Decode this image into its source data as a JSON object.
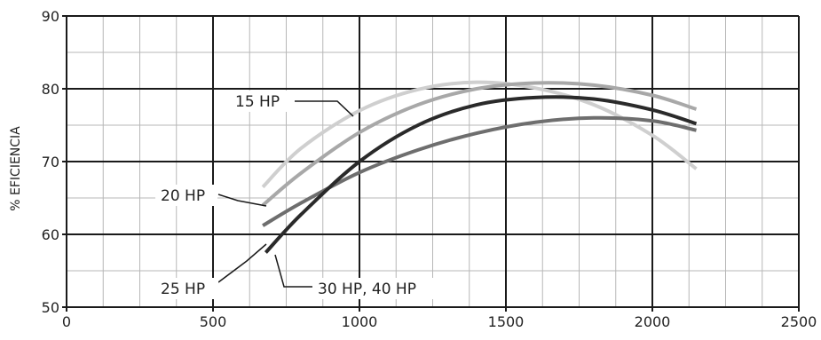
{
  "chart_data": {
    "type": "line",
    "title": "",
    "xlabel": "",
    "ylabel": "% EFICIENCIA",
    "xlim": [
      0,
      2500
    ],
    "ylim": [
      50,
      90
    ],
    "x_ticks": [
      0,
      500,
      1000,
      1500,
      2000,
      2500
    ],
    "y_ticks": [
      50,
      60,
      70,
      80,
      90
    ],
    "x_tick_labels": [
      "0",
      "500",
      "1000",
      "1500",
      "2000",
      "2500"
    ],
    "y_tick_labels": [
      "50",
      "60",
      "70",
      "80",
      "90"
    ],
    "grid": true,
    "series": [
      {
        "name": "15 HP",
        "color": "#cfcfcf",
        "x": [
          670,
          800,
          1000,
          1200,
          1400,
          1600,
          1800,
          2000,
          2150
        ],
        "y": [
          66.5,
          71.8,
          77.0,
          79.9,
          80.9,
          80.1,
          77.8,
          73.6,
          69.0
        ]
      },
      {
        "name": "20 HP",
        "color": "#a8a8a8",
        "x": [
          670,
          800,
          1000,
          1200,
          1400,
          1600,
          1800,
          2000,
          2150
        ],
        "y": [
          64.0,
          68.4,
          74.0,
          77.8,
          80.0,
          80.8,
          80.5,
          79.1,
          77.2
        ]
      },
      {
        "name": "25 HP",
        "color": "#6e6e6e",
        "x": [
          670,
          800,
          1000,
          1200,
          1400,
          1600,
          1800,
          2000,
          2150
        ],
        "y": [
          61.2,
          64.3,
          68.5,
          71.6,
          73.9,
          75.4,
          76.0,
          75.6,
          74.3
        ]
      },
      {
        "name": "30 HP, 40 HP",
        "color": "#2a2a2a",
        "x": [
          680,
          800,
          1000,
          1200,
          1400,
          1600,
          1800,
          2000,
          2150
        ],
        "y": [
          57.5,
          62.7,
          70.0,
          75.0,
          77.8,
          78.8,
          78.6,
          77.1,
          75.2
        ]
      }
    ],
    "annotations": [
      {
        "label": "15 HP",
        "series": "15 HP"
      },
      {
        "label": "20 HP",
        "series": "20 HP"
      },
      {
        "label": "25 HP",
        "series": "25 HP"
      },
      {
        "label": "30 HP, 40 HP",
        "series": "30 HP, 40 HP"
      }
    ]
  }
}
